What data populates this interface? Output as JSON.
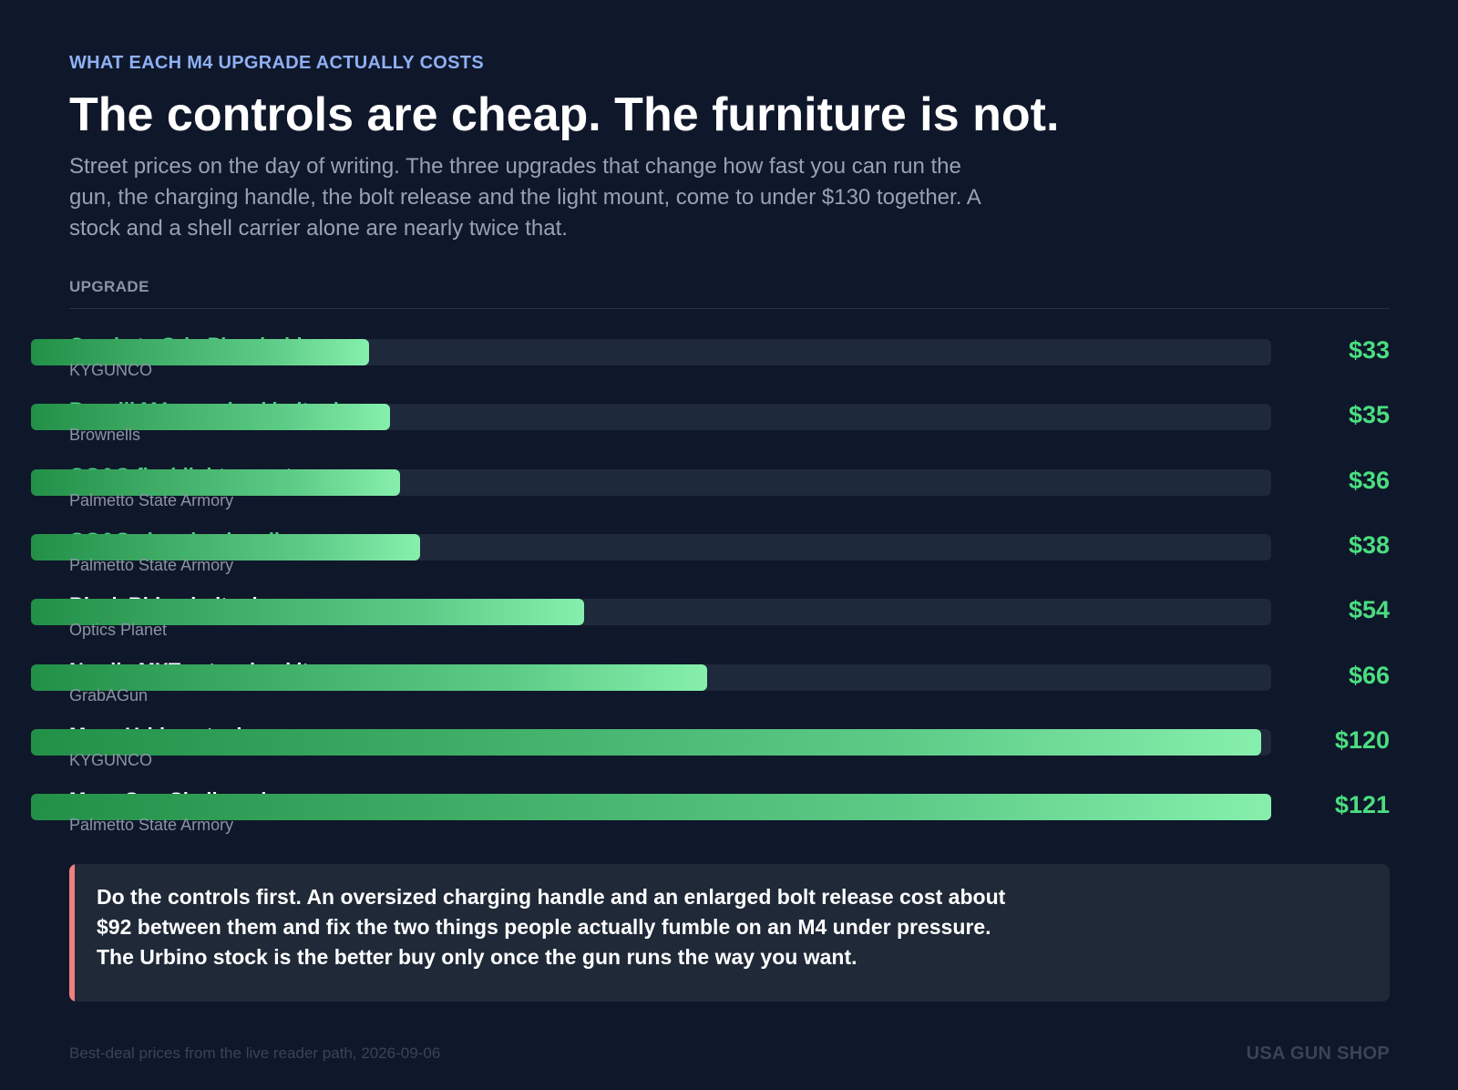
{
  "header": {
    "eyebrow": "WHAT EACH M4 UPGRADE ACTUALLY COSTS",
    "title": "The controls are cheap. The furniture is not.",
    "subtitle": "Street prices on the day of writing. The three upgrades that change how fast you can run the gun, the charging handle, the bolt release and the light mount, come to under $130 together. A stock and a shell carrier alone are nearly twice that."
  },
  "table": {
    "column_header": "UPGRADE"
  },
  "colors": {
    "background": "#0f172a",
    "control_accent": "#4ade80",
    "bar_track": "#1e293b",
    "callout_accent": "#f08080"
  },
  "chart_data": {
    "type": "bar",
    "orientation": "horizontal",
    "title": "The controls are cheap. The furniture is not.",
    "xlim": [
      0,
      121
    ],
    "categories": [
      "Cerakote Grip Placeholder",
      "Benelli M4 oversized bolt release",
      "GG&G flashlight mount",
      "GG&G charging handle",
      "Black Rhino bolt release",
      "Nordic MXT extension kit",
      "Mesa Urbino stock",
      "Mesa SureShell carrier"
    ],
    "bars": [
      {
        "name": "Cerakote Grip Placeholder",
        "vendor": "KYGUNCO",
        "value": 33,
        "label": "$33",
        "control": true
      },
      {
        "name": "Benelli M4 oversized bolt release",
        "vendor": "Brownells",
        "value": 35,
        "label": "$35",
        "control": true
      },
      {
        "name": "GG&G flashlight mount",
        "vendor": "Palmetto State Armory",
        "value": 36,
        "label": "$36",
        "control": true
      },
      {
        "name": "GG&G charging handle",
        "vendor": "Palmetto State Armory",
        "value": 38,
        "label": "$38",
        "control": true
      },
      {
        "name": "Black Rhino bolt release",
        "vendor": "Optics Planet",
        "value": 54,
        "label": "$54",
        "control": false
      },
      {
        "name": "Nordic MXT extension kit",
        "vendor": "GrabAGun",
        "value": 66,
        "label": "$66",
        "control": false
      },
      {
        "name": "Mesa Urbino stock",
        "vendor": "KYGUNCO",
        "value": 120,
        "label": "$120",
        "control": false
      },
      {
        "name": "Mesa SureShell carrier",
        "vendor": "Palmetto State Armory",
        "value": 121,
        "label": "$121",
        "control": false
      }
    ]
  },
  "callout": {
    "text": "Do the controls first. An oversized charging handle and an enlarged bolt release cost about $92 between them and fix the two things people actually fumble on an M4 under pressure. The Urbino stock is the better buy only once the gun runs the way you want."
  },
  "footer": {
    "source": "Best-deal prices from the live reader path, 2026-09-06",
    "brand": "USA GUN SHOP"
  }
}
